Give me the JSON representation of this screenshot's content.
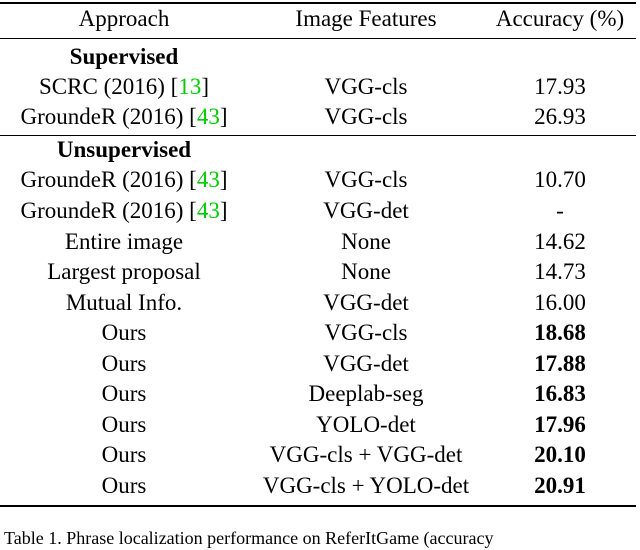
{
  "header": {
    "approach": "Approach",
    "features": "Image Features",
    "accuracy": "Accuracy (%)"
  },
  "sections": {
    "supervised": "Supervised",
    "unsupervised": "Unsupervised"
  },
  "supervised_rows": [
    {
      "method": "SCRC (2016) [",
      "cite": "13",
      "close": "]",
      "features": "VGG-cls",
      "accuracy": "17.93"
    },
    {
      "method": "GroundeR (2016) [",
      "cite": "43",
      "close": "]",
      "features": "VGG-cls",
      "accuracy": "26.93"
    }
  ],
  "unsupervised_rows": [
    {
      "method": "GroundeR (2016) [",
      "cite": "43",
      "close": "]",
      "features": "VGG-cls",
      "accuracy": "10.70"
    },
    {
      "method": "GroundeR (2016) [",
      "cite": "43",
      "close": "]",
      "features": "VGG-det",
      "accuracy": "-"
    },
    {
      "method": "Entire image",
      "features": "None",
      "accuracy": "14.62"
    },
    {
      "method": "Largest proposal",
      "features": "None",
      "accuracy": "14.73"
    },
    {
      "method": "Mutual Info.",
      "features": "VGG-det",
      "accuracy": "16.00"
    },
    {
      "method": "Ours",
      "features": "VGG-cls",
      "accuracy": "18.68"
    },
    {
      "method": "Ours",
      "features": "VGG-det",
      "accuracy": "17.88"
    },
    {
      "method": "Ours",
      "features": "Deeplab-seg",
      "accuracy": "16.83"
    },
    {
      "method": "Ours",
      "features": "YOLO-det",
      "accuracy": "17.96"
    },
    {
      "method": "Ours",
      "features": "VGG-cls + VGG-det",
      "accuracy": "20.10"
    },
    {
      "method": "Ours",
      "features": "VGG-cls + YOLO-det",
      "accuracy": "20.91"
    }
  ],
  "caption": "Table 1. Phrase localization performance on ReferItGame (accuracy"
}
